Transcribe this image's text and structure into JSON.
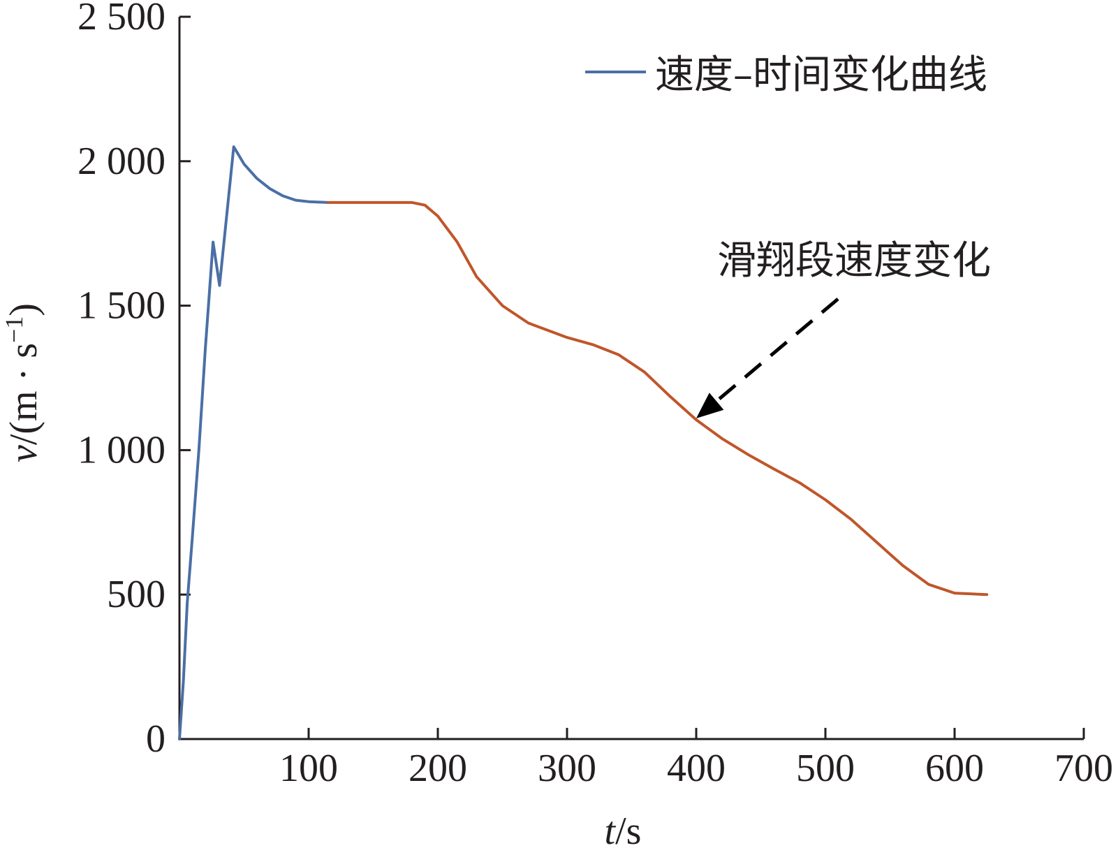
{
  "chart_data": {
    "type": "line",
    "title": "",
    "xlabel": {
      "var": "t",
      "unit": "/s"
    },
    "ylabel": {
      "var": "v",
      "unit": "/(m · s",
      "exp": "−1",
      "close": ")"
    },
    "xlim": [
      0,
      700
    ],
    "ylim": [
      0,
      2500
    ],
    "x_ticks": [
      100,
      200,
      300,
      400,
      500,
      600,
      700
    ],
    "x_tick_labels": [
      "100",
      "200",
      "300",
      "400",
      "500",
      "600",
      "700"
    ],
    "y_ticks": [
      0,
      500,
      1000,
      1500,
      2000,
      2500
    ],
    "y_tick_labels": [
      "0",
      "500",
      "1 000",
      "1 500",
      "2 000",
      "2 500"
    ],
    "grid": false,
    "legend": {
      "position": "top-right",
      "entries": [
        "速度–时间变化曲线"
      ]
    },
    "series": [
      {
        "name": "速度–时间变化曲线",
        "color": "#4a6fa5",
        "points": [
          [
            0,
            0
          ],
          [
            3,
            200
          ],
          [
            6,
            470
          ],
          [
            10,
            700
          ],
          [
            15,
            1000
          ],
          [
            20,
            1350
          ],
          [
            26,
            1720
          ],
          [
            31,
            1570
          ],
          [
            42,
            2050
          ],
          [
            50,
            1990
          ],
          [
            60,
            1940
          ],
          [
            70,
            1905
          ],
          [
            80,
            1880
          ],
          [
            90,
            1865
          ],
          [
            100,
            1860
          ],
          [
            115,
            1857
          ]
        ]
      },
      {
        "name": "",
        "color": "#c0562a",
        "points": [
          [
            115,
            1857
          ],
          [
            150,
            1857
          ],
          [
            180,
            1857
          ],
          [
            190,
            1848
          ],
          [
            200,
            1810
          ],
          [
            215,
            1720
          ],
          [
            230,
            1600
          ],
          [
            250,
            1500
          ],
          [
            270,
            1440
          ],
          [
            300,
            1390
          ],
          [
            320,
            1365
          ],
          [
            340,
            1330
          ],
          [
            360,
            1270
          ],
          [
            380,
            1185
          ],
          [
            400,
            1105
          ],
          [
            420,
            1040
          ],
          [
            440,
            985
          ],
          [
            460,
            935
          ],
          [
            480,
            887
          ],
          [
            500,
            828
          ],
          [
            520,
            760
          ],
          [
            540,
            680
          ],
          [
            560,
            600
          ],
          [
            580,
            535
          ],
          [
            600,
            505
          ],
          [
            625,
            500
          ]
        ]
      }
    ],
    "annotations": [
      {
        "text": "滑翔段速度变化",
        "arrow_to": [
          400,
          1110
        ]
      }
    ]
  }
}
